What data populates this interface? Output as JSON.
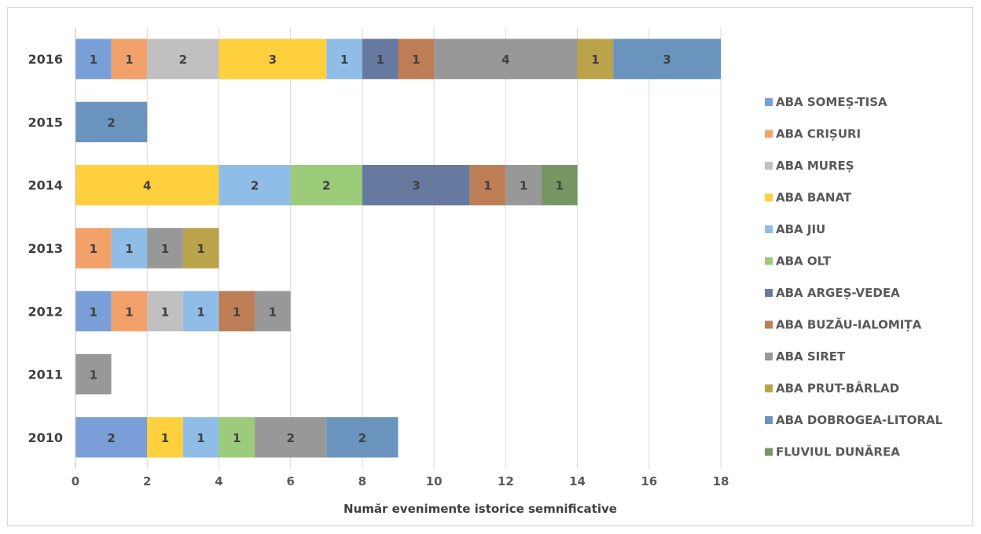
{
  "chart_data": {
    "type": "bar",
    "orientation": "horizontal",
    "stacked": true,
    "title": "",
    "xlabel": "Număr evenimente istorice semnificative",
    "ylabel": "",
    "xlim": [
      0,
      18
    ],
    "x_ticks": [
      "0",
      "2",
      "4",
      "6",
      "8",
      "10",
      "12",
      "14",
      "16",
      "18"
    ],
    "grid": "vertical",
    "legend_position": "right",
    "categories": [
      "2016",
      "2015",
      "2014",
      "2013",
      "2012",
      "2011",
      "2010"
    ],
    "series": [
      {
        "name": "ABA SOMEȘ-TISA",
        "color": "#7a9fd8",
        "values": [
          1,
          0,
          0,
          0,
          1,
          0,
          2
        ]
      },
      {
        "name": "ABA CRIȘURI",
        "color": "#f2a16b",
        "values": [
          1,
          0,
          0,
          1,
          1,
          0,
          0
        ]
      },
      {
        "name": "ABA MUREȘ",
        "color": "#c0c0c0",
        "values": [
          2,
          0,
          0,
          0,
          1,
          0,
          0
        ]
      },
      {
        "name": "ABA BANAT",
        "color": "#ffd03d",
        "values": [
          3,
          0,
          4,
          0,
          0,
          0,
          1
        ]
      },
      {
        "name": "ABA JIU",
        "color": "#8fbde8",
        "values": [
          1,
          0,
          2,
          1,
          1,
          0,
          1
        ]
      },
      {
        "name": "ABA OLT",
        "color": "#9ccb7a",
        "values": [
          0,
          0,
          2,
          0,
          0,
          0,
          1
        ]
      },
      {
        "name": "ABA ARGEȘ-VEDEA",
        "color": "#66799f",
        "values": [
          1,
          0,
          3,
          0,
          0,
          0,
          0
        ]
      },
      {
        "name": "ABA BUZĂU-IALOMIȚA",
        "color": "#bd7e56",
        "values": [
          1,
          0,
          1,
          0,
          1,
          0,
          0
        ]
      },
      {
        "name": "ABA SIRET",
        "color": "#989898",
        "values": [
          4,
          0,
          1,
          1,
          1,
          1,
          2
        ]
      },
      {
        "name": "ABA PRUT-BÂRLAD",
        "color": "#bba34b",
        "values": [
          1,
          0,
          0,
          1,
          0,
          0,
          0
        ]
      },
      {
        "name": "ABA DOBROGEA-LITORAL",
        "color": "#6a94bd",
        "values": [
          3,
          2,
          0,
          0,
          0,
          0,
          2
        ]
      },
      {
        "name": "FLUVIUL DUNĂREA",
        "color": "#759763",
        "values": [
          0,
          0,
          1,
          0,
          0,
          0,
          0
        ]
      }
    ]
  }
}
